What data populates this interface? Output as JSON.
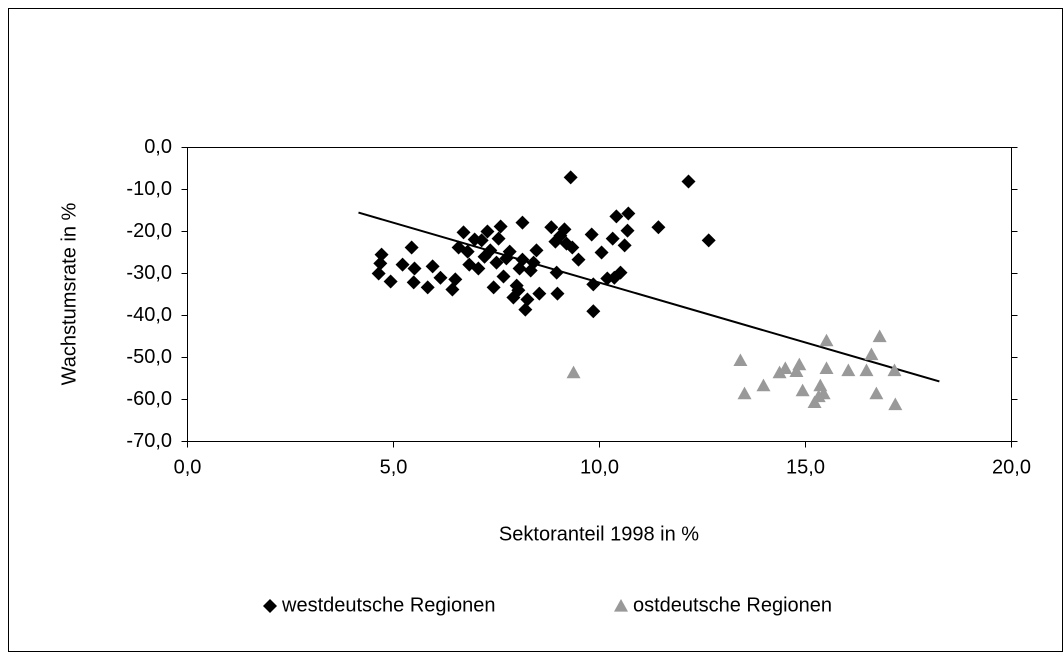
{
  "chart_data": {
    "type": "scatter",
    "x_label": "Sektoranteil 1998 in %",
    "y_label": "Wachstumsrate in %",
    "xlim": [
      0,
      20
    ],
    "xticks": [
      {
        "value": 0,
        "label": "0,0"
      },
      {
        "value": 5,
        "label": "5,0"
      },
      {
        "value": 10,
        "label": "10,0"
      },
      {
        "value": 15,
        "label": "15,0"
      },
      {
        "value": 20,
        "label": "20,0"
      }
    ],
    "ylim": [
      -70,
      0
    ],
    "yticks": [
      {
        "value": 0,
        "label": "0,0"
      },
      {
        "value": -10,
        "label": "-10,0"
      },
      {
        "value": -20,
        "label": "-20,0"
      },
      {
        "value": -30,
        "label": "-30,0"
      },
      {
        "value": -40,
        "label": "-40,0"
      },
      {
        "value": -50,
        "label": "-50,0"
      },
      {
        "value": -60,
        "label": "-60,0"
      },
      {
        "value": -70,
        "label": "-70,0"
      }
    ],
    "grid": false,
    "series": [
      {
        "name": "westdeutsche Regionen",
        "color": "#000000",
        "marker": "diamond",
        "x": [
          4.64,
          4.71,
          4.68,
          4.93,
          5.22,
          5.44,
          5.51,
          5.49,
          5.83,
          5.95,
          6.14,
          6.43,
          6.5,
          6.58,
          6.7,
          6.8,
          6.84,
          6.97,
          7.06,
          7.14,
          7.21,
          7.28,
          7.35,
          7.43,
          7.5,
          7.55,
          7.6,
          7.67,
          7.74,
          7.82,
          7.91,
          7.99,
          8.06,
          8.13,
          8.13,
          8.2,
          8.25,
          8.33,
          8.4,
          8.47,
          8.54,
          8.83,
          8.93,
          8.98,
          9.05,
          9.15,
          9.2,
          9.3,
          9.34,
          9.49,
          9.81,
          9.85,
          9.85,
          10.05,
          10.19,
          10.32,
          10.36,
          10.41,
          10.51,
          10.61,
          10.68,
          10.7,
          11.43,
          12.16,
          12.65,
          8.96,
          8.03
        ],
        "values": [
          -30.0,
          -25.5,
          -27.6,
          -31.9,
          -27.9,
          -23.8,
          -28.8,
          -32.1,
          -33.3,
          -28.3,
          -31.0,
          -33.8,
          -31.4,
          -23.8,
          -20.2,
          -24.8,
          -27.9,
          -21.9,
          -28.8,
          -22.1,
          -26.0,
          -20.0,
          -24.5,
          -33.3,
          -27.4,
          -21.7,
          -18.8,
          -30.7,
          -26.4,
          -24.8,
          -35.7,
          -32.9,
          -28.8,
          -17.9,
          -26.7,
          -38.6,
          -36.2,
          -29.3,
          -27.4,
          -24.5,
          -34.8,
          -19.0,
          -22.4,
          -34.8,
          -21.0,
          -19.5,
          -22.9,
          -7.1,
          -23.8,
          -26.7,
          -20.7,
          -32.6,
          -39.0,
          -25.0,
          -31.2,
          -21.7,
          -31.0,
          -16.4,
          -29.8,
          -23.3,
          -19.8,
          -15.7,
          -19.0,
          -8.1,
          -22.1,
          -29.8,
          -34.0
        ]
      },
      {
        "name": "ostdeutsche Regionen",
        "color": "#999999",
        "marker": "triangle",
        "x": [
          9.37,
          13.42,
          13.52,
          13.98,
          14.37,
          14.51,
          14.78,
          14.85,
          14.93,
          15.22,
          15.32,
          15.36,
          15.44,
          15.51,
          15.51,
          16.04,
          16.48,
          16.6,
          16.72,
          16.8,
          17.16,
          17.18
        ],
        "values": [
          -53.6,
          -50.7,
          -58.6,
          -56.7,
          -53.6,
          -52.6,
          -53.3,
          -51.7,
          -57.9,
          -60.7,
          -59.3,
          -56.7,
          -58.6,
          -52.6,
          -46.0,
          -53.1,
          -53.1,
          -49.3,
          -58.6,
          -45.0,
          -53.1,
          -61.2
        ]
      }
    ],
    "trendline": {
      "color": "#000000",
      "x": [
        4.15,
        18.25
      ],
      "values": [
        -15.5,
        -55.7
      ]
    },
    "legend": "bottom"
  }
}
